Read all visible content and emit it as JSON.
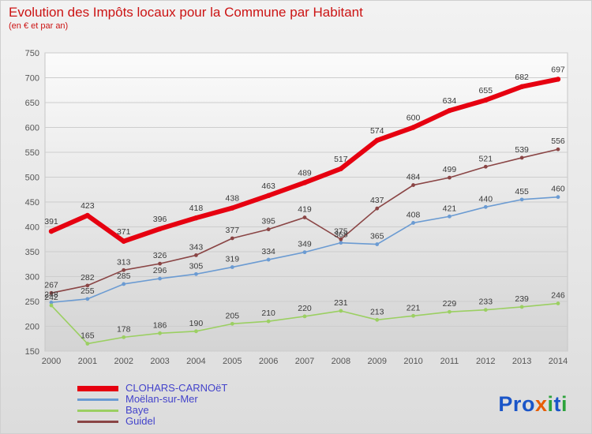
{
  "title": "Evolution des Impôts locaux pour la Commune par Habitant",
  "subtitle": "(en € et par an)",
  "title_color": "#cc1414",
  "chart_data": {
    "type": "line",
    "x": [
      2000,
      2001,
      2002,
      2003,
      2004,
      2005,
      2006,
      2007,
      2008,
      2009,
      2010,
      2011,
      2012,
      2013,
      2014
    ],
    "ylim": [
      150,
      750
    ],
    "ytick_step": 50,
    "grid": true,
    "legend_position": "bottom-left",
    "xlabel": "",
    "ylabel": "",
    "series": [
      {
        "name": "CLOHARS-CARNOëT",
        "color": "#e60010",
        "width": 6,
        "values": [
          391,
          423,
          371,
          396,
          418,
          438,
          463,
          489,
          517,
          574,
          600,
          634,
          655,
          682,
          697
        ]
      },
      {
        "name": "Moëlan-sur-Mer",
        "color": "#6b9bd2",
        "width": 1.6,
        "values": [
          248,
          255,
          285,
          296,
          305,
          319,
          334,
          349,
          368,
          365,
          408,
          421,
          440,
          455,
          460
        ]
      },
      {
        "name": "Baye",
        "color": "#9bcf62",
        "width": 1.6,
        "values": [
          242,
          165,
          178,
          186,
          190,
          205,
          210,
          220,
          231,
          213,
          221,
          229,
          233,
          239,
          246
        ]
      },
      {
        "name": "Guidel",
        "color": "#8a4545",
        "width": 1.6,
        "values": [
          267,
          282,
          313,
          326,
          343,
          377,
          395,
          419,
          375,
          437,
          484,
          499,
          521,
          539,
          556
        ]
      }
    ]
  },
  "legend": {
    "text_color": "#4343cb",
    "items": [
      "CLOHARS-CARNOëT",
      "Moëlan-sur-Mer",
      "Baye",
      "Guidel"
    ]
  },
  "logo": {
    "text": "Proxiti",
    "letters": [
      {
        "ch": "P",
        "color": "#1a55c8"
      },
      {
        "ch": "r",
        "color": "#1a55c8"
      },
      {
        "ch": "o",
        "color": "#1a55c8"
      },
      {
        "ch": "x",
        "color": "#e85d04"
      },
      {
        "ch": "i",
        "color": "#2da33c"
      },
      {
        "ch": "t",
        "color": "#1a55c8"
      },
      {
        "ch": "i",
        "color": "#2da33c"
      }
    ]
  }
}
